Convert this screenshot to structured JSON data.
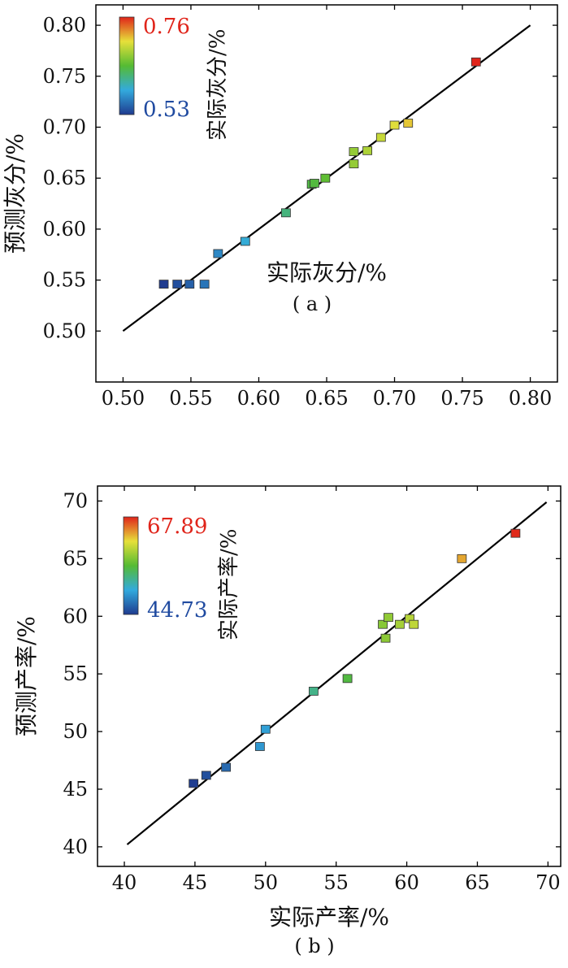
{
  "chart_data": [
    {
      "type": "scatter",
      "panel_label": "( a )",
      "xlabel": "实际灰分/%",
      "ylabel": "预测灰分/%",
      "xlim": [
        0.48,
        0.82
      ],
      "ylim": [
        0.45,
        0.82
      ],
      "xticks": [
        "0.50",
        "0.55",
        "0.60",
        "0.65",
        "0.70",
        "0.75",
        "0.80"
      ],
      "yticks": [
        "0.50",
        "0.55",
        "0.60",
        "0.65",
        "0.70",
        "0.75",
        "0.80"
      ],
      "grid": false,
      "fit_line": [
        [
          0.5,
          0.5
        ],
        [
          0.8,
          0.8
        ]
      ],
      "colorbar": {
        "label": "实际灰分/%",
        "min": 0.53,
        "max": 0.76,
        "min_label": "0.53",
        "max_label": "0.76",
        "placement": "top-left"
      },
      "points": [
        {
          "x": 0.53,
          "y": 0.546
        },
        {
          "x": 0.54,
          "y": 0.546
        },
        {
          "x": 0.549,
          "y": 0.546
        },
        {
          "x": 0.56,
          "y": 0.546
        },
        {
          "x": 0.57,
          "y": 0.576
        },
        {
          "x": 0.59,
          "y": 0.588
        },
        {
          "x": 0.62,
          "y": 0.616
        },
        {
          "x": 0.639,
          "y": 0.644
        },
        {
          "x": 0.641,
          "y": 0.645
        },
        {
          "x": 0.649,
          "y": 0.65
        },
        {
          "x": 0.67,
          "y": 0.664
        },
        {
          "x": 0.67,
          "y": 0.676
        },
        {
          "x": 0.68,
          "y": 0.677
        },
        {
          "x": 0.69,
          "y": 0.69
        },
        {
          "x": 0.7,
          "y": 0.702
        },
        {
          "x": 0.71,
          "y": 0.704
        },
        {
          "x": 0.76,
          "y": 0.764
        }
      ]
    },
    {
      "type": "scatter",
      "panel_label": "( b )",
      "xlabel": "实际产率/%",
      "ylabel": "预测产率/%",
      "xlim": [
        38.1,
        70.9
      ],
      "ylim": [
        38.3,
        71.3
      ],
      "xticks": [
        "40",
        "45",
        "50",
        "55",
        "60",
        "65",
        "70"
      ],
      "yticks": [
        "40",
        "45",
        "50",
        "55",
        "60",
        "65",
        "70"
      ],
      "grid": false,
      "fit_line": [
        [
          40.2,
          40.2
        ],
        [
          69.9,
          69.9
        ]
      ],
      "colorbar": {
        "label": "实际产率/%",
        "min": 44.73,
        "max": 67.89,
        "min_label": "44.73",
        "max_label": "67.89",
        "placement": "top-left"
      },
      "points": [
        {
          "x": 44.9,
          "y": 45.5
        },
        {
          "x": 45.8,
          "y": 46.2
        },
        {
          "x": 47.2,
          "y": 46.9
        },
        {
          "x": 49.6,
          "y": 48.7
        },
        {
          "x": 50.0,
          "y": 50.2
        },
        {
          "x": 53.4,
          "y": 53.5
        },
        {
          "x": 55.8,
          "y": 54.6
        },
        {
          "x": 58.3,
          "y": 59.3
        },
        {
          "x": 58.5,
          "y": 58.1
        },
        {
          "x": 58.7,
          "y": 59.9
        },
        {
          "x": 59.5,
          "y": 59.3
        },
        {
          "x": 60.2,
          "y": 59.8
        },
        {
          "x": 60.5,
          "y": 59.3
        },
        {
          "x": 63.9,
          "y": 65.0
        },
        {
          "x": 67.7,
          "y": 67.2
        }
      ]
    }
  ]
}
